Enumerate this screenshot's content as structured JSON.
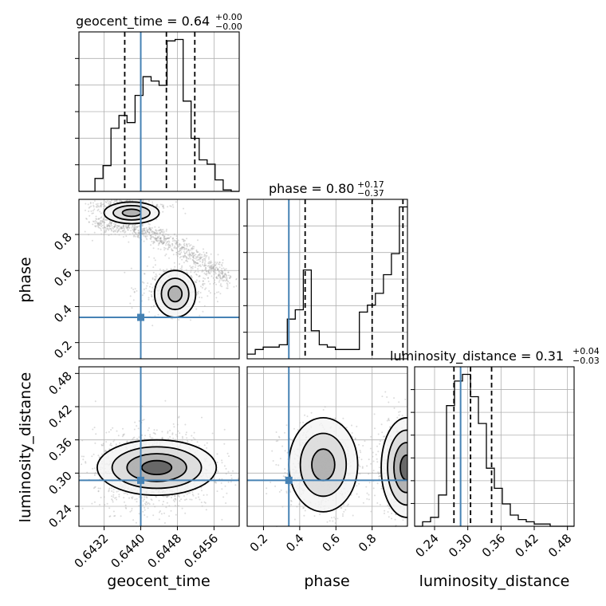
{
  "colors": {
    "truth": "#4682b4",
    "hist": "#000000",
    "grid": "#b0b0b0",
    "samples": "#9a9a9a"
  },
  "chart_data": {
    "type": "corner",
    "parameters": [
      "geocent_time",
      "phase",
      "luminosity_distance"
    ],
    "truths": {
      "geocent_time": 0.644,
      "phase": 0.34,
      "luminosity_distance": 0.287
    },
    "titles": [
      {
        "param": "geocent_time",
        "text": "geocent_time = 0.64",
        "plus": "+0.00",
        "minus": "−0.00"
      },
      {
        "param": "phase",
        "text": "phase = 0.80",
        "plus": "+0.17",
        "minus": "−0.37"
      },
      {
        "param": "luminosity_distance",
        "text": "luminosity_distance = 0.31",
        "plus": "+0.04",
        "minus": "−0.03"
      }
    ],
    "axis_labels": {
      "geocent_time": "geocent_time",
      "phase": "phase",
      "luminosity_distance": "luminosity_distance"
    },
    "ranges": {
      "geocent_time": [
        0.64265,
        0.64615
      ],
      "phase": [
        0.11,
        0.995
      ],
      "luminosity_distance": [
        0.204,
        0.492
      ]
    },
    "ticks": {
      "geocent_time": [
        "0.6432",
        "0.6440",
        "0.6448",
        "0.6456"
      ],
      "phase": [
        "0.2",
        "0.4",
        "0.6",
        "0.8"
      ],
      "luminosity_distance": [
        "0.24",
        "0.30",
        "0.36",
        "0.42",
        "0.48"
      ],
      "phase_left": [
        "0.2",
        "0.4",
        "0.6",
        "0.8"
      ]
    },
    "quantiles": {
      "geocent_time": [
        0.64365,
        0.64456,
        0.64518
      ],
      "phase": [
        0.43,
        0.8,
        0.97
      ],
      "luminosity_distance": [
        0.275,
        0.305,
        0.343
      ]
    },
    "histograms": {
      "geocent_time": {
        "edges_from": 0.64265,
        "bin_width": 0.000175,
        "counts": [
          0,
          0,
          9,
          18,
          44,
          53,
          48,
          67,
          80,
          77,
          74,
          105,
          106,
          63,
          37,
          22,
          19,
          8,
          1,
          0
        ]
      },
      "phase": {
        "edges_from": 0.11,
        "bin_width": 0.04425,
        "counts": [
          2,
          4,
          5,
          5,
          6,
          17,
          21,
          38,
          12,
          6,
          5,
          4,
          4,
          4,
          20,
          23,
          28,
          36,
          45,
          65
        ]
      },
      "luminosity_distance": {
        "edges_from": 0.204,
        "bin_width": 0.0144,
        "counts": [
          0,
          2,
          4,
          14,
          54,
          65,
          68,
          58,
          46,
          26,
          17,
          10,
          5,
          3,
          2,
          1,
          1,
          0,
          0,
          0
        ]
      }
    },
    "contour_levels": 4,
    "grid": true
  }
}
